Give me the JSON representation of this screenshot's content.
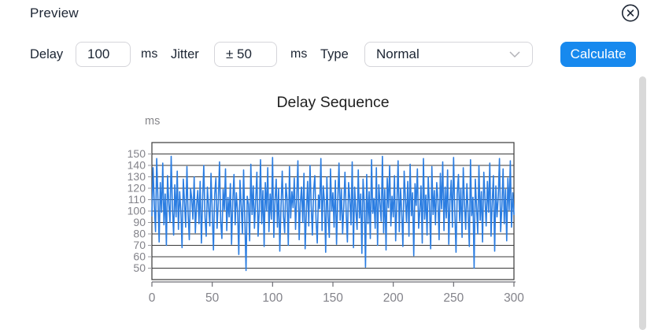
{
  "header": {
    "title": "Preview"
  },
  "controls": {
    "delay_label": "Delay",
    "delay_value": "100",
    "delay_unit": "ms",
    "jitter_label": "Jitter",
    "jitter_value": "± 50",
    "jitter_unit": "ms",
    "type_label": "Type",
    "type_value": "Normal",
    "calculate_label": "Calculate"
  },
  "colors": {
    "accent": "#1789ee",
    "line": "#2b7de1",
    "grid": "#3a3a3a",
    "axis_text": "#83838a",
    "text": "#1c2533"
  },
  "chart_data": {
    "type": "line",
    "title": "Delay Sequence",
    "ylabel": "ms",
    "xlabel": "",
    "x_ticks": [
      0,
      50,
      100,
      150,
      200,
      250,
      300
    ],
    "y_ticks": [
      50,
      60,
      70,
      80,
      90,
      100,
      110,
      120,
      130,
      140,
      150
    ],
    "xlim": [
      0,
      300
    ],
    "ylim": [
      40,
      160
    ],
    "grid": true,
    "legend": "none",
    "x_step": 1,
    "values": [
      96,
      138,
      104,
      82,
      146,
      110,
      73,
      125,
      99,
      142,
      88,
      115,
      70,
      131,
      106,
      90,
      148,
      102,
      79,
      123,
      95,
      135,
      84,
      117,
      100,
      68,
      128,
      108,
      86,
      139,
      97,
      75,
      120,
      111,
      93,
      130,
      81,
      105,
      118,
      89,
      126,
      72,
      109,
      140,
      94,
      78,
      121,
      103,
      87,
      133,
      98,
      66,
      114,
      129,
      85,
      107,
      143,
      91,
      76,
      119,
      101,
      137,
      83,
      112,
      95,
      124,
      71,
      108,
      132,
      88,
      116,
      99,
      62,
      127,
      104,
      80,
      136,
      92,
      48,
      113,
      106,
      74,
      141,
      97,
      122,
      85,
      110,
      134,
      78,
      102,
      145,
      89,
      118,
      69,
      125,
      100,
      138,
      82,
      115,
      93,
      147,
      77,
      109,
      128,
      86,
      120,
      65,
      105,
      135,
      96,
      81,
      124,
      111,
      70,
      139,
      94,
      117,
      103,
      129,
      84,
      112,
      144,
      75,
      107,
      121,
      90,
      133,
      67,
      99,
      126,
      87,
      140,
      105,
      79,
      118,
      131,
      93,
      72,
      114,
      102,
      146,
      83,
      122,
      108,
      64,
      130,
      95,
      77,
      137,
      100,
      116,
      86,
      127,
      71,
      109,
      142,
      92,
      119,
      80,
      104,
      134,
      97,
      73,
      125,
      110,
      88,
      143,
      68,
      121,
      101,
      84,
      136,
      94,
      115,
      63,
      128,
      106,
      51,
      132,
      89,
      117,
      76,
      145,
      98,
      111,
      85,
      138,
      70,
      123,
      107,
      91,
      148,
      81,
      119,
      66,
      129,
      103,
      140,
      87,
      113,
      95,
      131,
      74,
      108,
      144,
      82,
      120,
      99,
      69,
      135,
      112,
      90,
      126,
      78,
      141,
      96,
      116,
      61,
      124,
      105,
      137,
      85,
      100,
      122,
      72,
      146,
      93,
      114,
      79,
      130,
      104,
      67,
      139,
      97,
      118,
      88,
      125,
      110,
      75,
      133,
      102,
      143,
      83,
      121,
      94,
      136,
      71,
      109,
      127,
      86,
      147,
      98,
      64,
      115,
      132,
      91,
      120,
      77,
      138,
      107,
      84,
      124,
      100,
      69,
      145,
      96,
      112,
      50,
      128,
      103,
      80,
      140,
      92,
      117,
      73,
      134,
      111,
      87,
      126,
      99,
      142,
      78,
      108,
      131,
      65,
      122,
      95,
      113,
      146,
      82,
      104,
      137,
      89,
      119,
      74,
      129,
      101,
      144,
      86,
      116,
      97
    ]
  }
}
